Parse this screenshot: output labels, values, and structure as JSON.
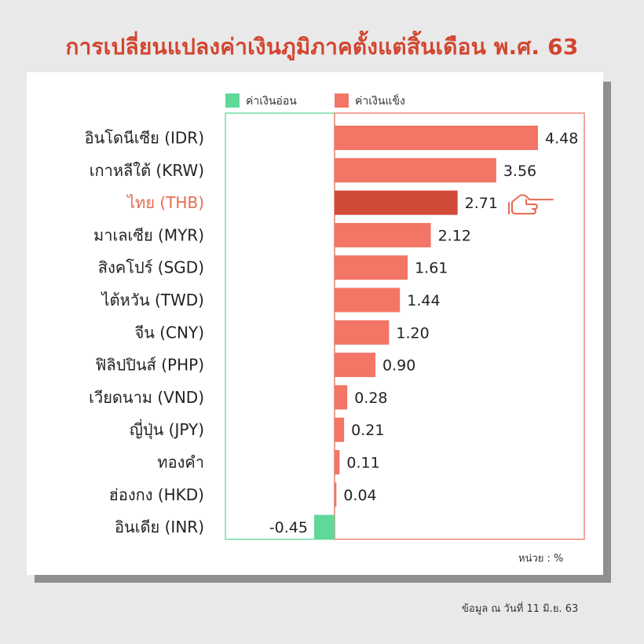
{
  "title": "การเปลี่ยนแปลงค่าเงินภูมิภาคตั้งแต่สิ้นเดือน พ.ศ. 63",
  "unit_label": "หน่วย : %",
  "source_note": "ข้อมูล ณ วันที่ 11 มิ.ย. 63",
  "colors": {
    "strong": "#f27565",
    "highlight": "#d24a3a",
    "weak": "#5fd89a",
    "highlight_label": "#e56b52",
    "title": "#d2452f"
  },
  "chart_data": {
    "type": "bar",
    "orientation": "horizontal",
    "legend": [
      {
        "label": "ค่าเงินอ่อน",
        "color": "#5fd89a"
      },
      {
        "label": "ค่าเงินแข็ง",
        "color": "#f27565"
      }
    ],
    "legend_position": "top",
    "categories": [
      "อินโดนีเซีย (IDR)",
      "เกาหลีใต้ (KRW)",
      "ไทย (THB)",
      "มาเลเซีย (MYR)",
      "สิงคโปร์ (SGD)",
      "ไต้หวัน (TWD)",
      "จีน (CNY)",
      "ฟิลิปปินส์ (PHP)",
      "เวียดนาม (VND)",
      "ญี่ปุ่น (JPY)",
      "ทองคำ",
      "ฮ่องกง (HKD)",
      "อินเดีย (INR)"
    ],
    "values": [
      4.48,
      3.56,
      2.71,
      2.12,
      1.61,
      1.44,
      1.2,
      0.9,
      0.28,
      0.21,
      0.11,
      0.04,
      -0.45
    ],
    "value_labels": [
      "4.48",
      "3.56",
      "2.71",
      "2.12",
      "1.61",
      "1.44",
      "1.20",
      "0.90",
      "0.28",
      "0.21",
      "0.11",
      "0.04",
      "-0.45"
    ],
    "highlighted_category": "ไทย (THB)",
    "xlim": [
      -1,
      4.48
    ],
    "grid": false
  }
}
